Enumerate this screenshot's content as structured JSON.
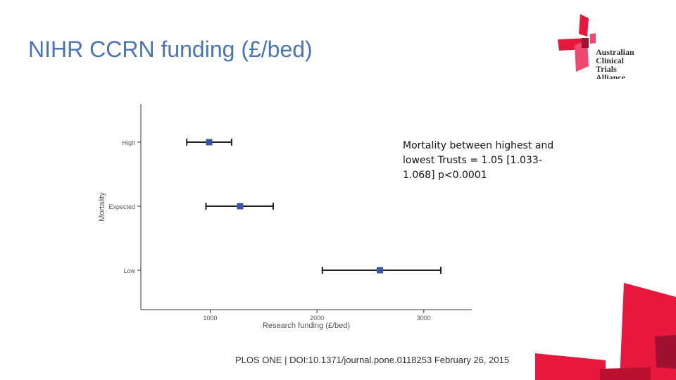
{
  "slide": {
    "title": "NIHR CCRN funding (£/bed)",
    "annotation": "Mortality between highest and lowest Trusts = 1.05 [1.033-1.068] p<0.0001",
    "citation": "PLOS ONE | DOI:10.1371/journal.pone.0118253   February 26, 2015"
  },
  "logo": {
    "lines": [
      "Australian",
      "Clinical",
      "Trials",
      "Alliance"
    ]
  },
  "colors": {
    "title": "#4a74b8",
    "point": "#3a55a4",
    "brand_red": "#e8173c",
    "brand_pink": "#f04870"
  },
  "chart_data": {
    "type": "scatter",
    "subtype": "point-with-error-bars",
    "title": "",
    "xlabel": "Research funding (£/bed)",
    "ylabel": "Mortality",
    "xlim": [
      350,
      3450
    ],
    "x_ticks": [
      1000,
      2000,
      3000
    ],
    "x_tick_labels": [
      "1000",
      "2000",
      "3000"
    ],
    "categories": [
      "High",
      "Expected",
      "Low"
    ],
    "points": [
      {
        "category": "High",
        "x": 990,
        "lower": 780,
        "upper": 1200
      },
      {
        "category": "Expected",
        "x": 1280,
        "lower": 960,
        "upper": 1590
      },
      {
        "category": "Low",
        "x": 2590,
        "lower": 2050,
        "upper": 3160
      }
    ],
    "grid": false,
    "legend": "none"
  }
}
